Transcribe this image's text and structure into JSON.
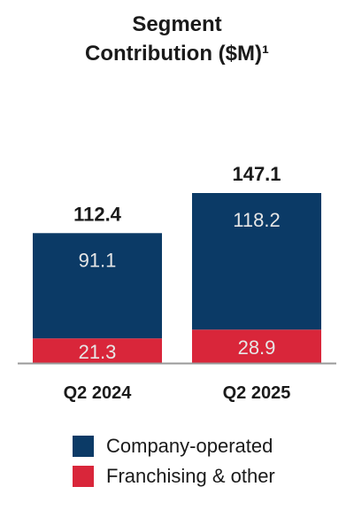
{
  "title": {
    "line1": "Segment",
    "line2": "Contribution ($M)¹"
  },
  "colors": {
    "company_operated": "#0b3a66",
    "franchising": "#d9263a",
    "axis": "#999999"
  },
  "chart_data": {
    "type": "bar",
    "stacked": true,
    "title": "Segment Contribution ($M)¹",
    "categories": [
      "Q2 2024",
      "Q2 2025"
    ],
    "series": [
      {
        "name": "Franchising & other",
        "values": [
          21.3,
          28.9
        ]
      },
      {
        "name": "Company-operated",
        "values": [
          91.1,
          118.2
        ]
      }
    ],
    "totals": [
      "112.4",
      "147.1"
    ],
    "legend_position": "bottom"
  },
  "legend": [
    {
      "label": "Company-operated",
      "color": "#0b3a66"
    },
    {
      "label": "Franchising & other",
      "color": "#d9263a"
    }
  ]
}
